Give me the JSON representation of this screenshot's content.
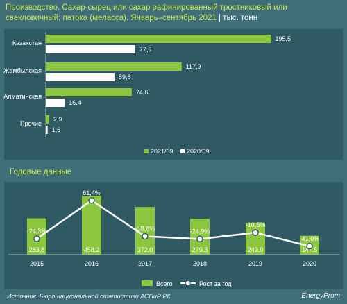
{
  "header": {
    "title": "Производство. Сахар-сырец или сахар рафинированный тростниковый или свекловичный; патока (меласса). Январь–сентябрь 2021",
    "unit": "| тыс. тонн"
  },
  "section2": {
    "title": "Годовые данные"
  },
  "footer": {
    "source": "Источник: Бюро национальной статистики АСПиР РК",
    "logo": "EnergyProm"
  },
  "colors": {
    "green": "#8cc63f",
    "white": "#ffffff",
    "bg": "#3f6d78",
    "panel": "#2f5a64",
    "accent": "#c8e64a"
  },
  "chart_data": [
    {
      "type": "bar",
      "orientation": "horizontal",
      "categories": [
        "Казахстан",
        "Жамбылская",
        "Алматинская",
        "Прочие"
      ],
      "series": [
        {
          "name": "2021/09",
          "values": [
            195.5,
            117.9,
            74.6,
            2.9
          ],
          "labels": [
            "195,5",
            "117,9",
            "74,6",
            "2,9"
          ],
          "color": "#8cc63f"
        },
        {
          "name": "2020/09",
          "values": [
            77.6,
            59.6,
            16.4,
            1.6
          ],
          "labels": [
            "77,6",
            "59,6",
            "16,4",
            "1,6"
          ],
          "color": "#ffffff"
        }
      ],
      "xlim": [
        0,
        200
      ],
      "legend": "bottom"
    },
    {
      "type": "bar",
      "categories": [
        "2015",
        "2016",
        "2017",
        "2018",
        "2019",
        "2020"
      ],
      "series": [
        {
          "name": "Всего",
          "values": [
            283.8,
            458.2,
            372.0,
            279.3,
            249.9,
            147.5
          ],
          "labels": [
            "283,8",
            "458,2",
            "372,0",
            "279,3",
            "249,9",
            "147,5"
          ],
          "color": "#8cc63f"
        },
        {
          "name": "Рост за год",
          "type": "line",
          "values": [
            -24.3,
            61.4,
            -18.8,
            -24.9,
            -10.5,
            -41.0
          ],
          "labels": [
            "-24,3%",
            "61,4%",
            "-18,8%",
            "-24,9%",
            "-10,5%",
            "-41,0%"
          ],
          "color": "#ffffff"
        }
      ],
      "ylim": [
        0,
        470
      ],
      "y2lim": [
        -60,
        75
      ],
      "legend": "bottom"
    }
  ]
}
